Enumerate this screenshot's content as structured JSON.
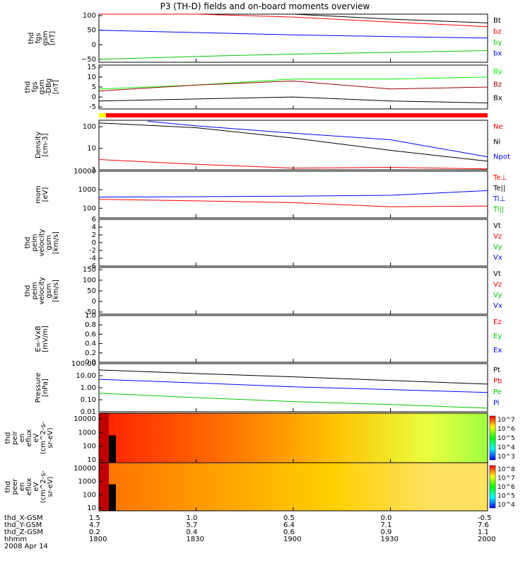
{
  "title": "P3 (TH-D) fields and on-board moments overview",
  "colors": {
    "black": "#000000",
    "red": "#ff0000",
    "darkred": "#a00000",
    "green": "#00c800",
    "lightgreen": "#00ff00",
    "blue": "#0000ff",
    "yellow": "#ffff00"
  },
  "chart_data": [
    {
      "type": "line",
      "panel": "fgs",
      "ylabel": "thd\nfgs\ngsm\n[nT]",
      "yticks": [
        "100",
        "50",
        "0",
        "−50"
      ],
      "ylim": [
        -60,
        105
      ],
      "legend": [
        {
          "name": "Bt",
          "color": "#000000"
        },
        {
          "name": "bz",
          "color": "#ff0000"
        },
        {
          "name": "by",
          "color": "#00c800"
        },
        {
          "name": "bx",
          "color": "#0000ff"
        }
      ],
      "series": [
        {
          "name": "Bt",
          "x": [
            1800,
            1830,
            1900,
            1930,
            2000
          ],
          "values": [
            170,
            130,
            105,
            88,
            75
          ]
        },
        {
          "name": "bz",
          "x": [
            1800,
            1830,
            1900,
            1930,
            2000
          ],
          "values": [
            160,
            125,
            95,
            78,
            62
          ]
        },
        {
          "name": "bx",
          "x": [
            1800,
            1830,
            1900,
            1930,
            2000
          ],
          "values": [
            50,
            42,
            34,
            28,
            23
          ]
        },
        {
          "name": "by",
          "x": [
            1800,
            1830,
            1900,
            1930,
            2000
          ],
          "values": [
            -50,
            -40,
            -32,
            -26,
            -20
          ]
        }
      ]
    },
    {
      "type": "line",
      "panel": "fgs-dBg",
      "ylabel": "thd\nfgs\ngsm\n-DBg\n[nT]",
      "yticks": [
        "15",
        "10",
        "5",
        "0",
        "-5"
      ],
      "ylim": [
        -6,
        16
      ],
      "legend": [
        {
          "name": "By",
          "color": "#00ff00"
        },
        {
          "name": "Bz",
          "color": "#a00000"
        },
        {
          "name": "Bx",
          "color": "#000000"
        }
      ],
      "series": [
        {
          "name": "By",
          "x": [
            1800,
            1830,
            1900,
            1930,
            2000
          ],
          "values": [
            4,
            6,
            9,
            9,
            10
          ]
        },
        {
          "name": "Bz",
          "x": [
            1800,
            1830,
            1900,
            1930,
            2000
          ],
          "values": [
            3,
            6,
            8,
            4,
            5
          ]
        },
        {
          "name": "Bx",
          "x": [
            1800,
            1830,
            1900,
            1930,
            2000
          ],
          "values": [
            -2,
            -1,
            0,
            -2,
            -3
          ]
        }
      ]
    },
    {
      "type": "line",
      "panel": "density",
      "ylabel": "Density\n[cm-3]",
      "yticks": [
        "100",
        "10",
        "1"
      ],
      "yscale": "log",
      "ylim": [
        1,
        200
      ],
      "legend": [
        {
          "name": "Ne",
          "color": "#ff0000"
        },
        {
          "name": "Ni",
          "color": "#000000"
        },
        {
          "name": "Npot",
          "color": "#0000ff"
        }
      ],
      "series": [
        {
          "name": "Ni",
          "x": [
            1800,
            1830,
            1900,
            1930,
            2000
          ],
          "values": [
            150,
            90,
            30,
            8,
            2.5
          ]
        },
        {
          "name": "Npot",
          "x": [
            1815,
            1830,
            1900,
            1930,
            2000
          ],
          "values": [
            180,
            110,
            50,
            25,
            4
          ]
        },
        {
          "name": "Ne",
          "x": [
            1800,
            1830,
            1900,
            1930,
            2000
          ],
          "values": [
            3,
            1.8,
            1.2,
            1.3,
            1.1
          ]
        }
      ]
    },
    {
      "type": "line",
      "panel": "temperature",
      "ylabel": "mom\n[eV]",
      "yticks": [
        "10000",
        "1000",
        "100"
      ],
      "yscale": "log",
      "ylim": [
        30,
        10000
      ],
      "legend": [
        {
          "name": "Te⊥",
          "color": "#ff0000"
        },
        {
          "name": "Te||",
          "color": "#000000"
        },
        {
          "name": "Ti⊥",
          "color": "#0000ff"
        },
        {
          "name": "Ti||",
          "color": "#00c800"
        }
      ],
      "series": [
        {
          "name": "Te⊥",
          "x": [
            1800,
            1830,
            1900,
            1930,
            2000
          ],
          "values": [
            300,
            250,
            200,
            120,
            130
          ]
        },
        {
          "name": "Ti⊥",
          "x": [
            1800,
            1830,
            1900,
            1930,
            2000
          ],
          "values": [
            400,
            420,
            450,
            500,
            900
          ]
        }
      ]
    },
    {
      "type": "line",
      "panel": "peim-velocity-1",
      "ylabel": "thd\npeim\nvelocity\ngsm\n[km/s]",
      "yticks": [
        "6",
        "4",
        "2",
        "0",
        "-2",
        "-4",
        "-6"
      ],
      "ylim": [
        -6,
        6
      ],
      "legend": [
        {
          "name": "Vt",
          "color": "#000000"
        },
        {
          "name": "Vz",
          "color": "#ff0000"
        },
        {
          "name": "Vy",
          "color": "#00c800"
        },
        {
          "name": "Vx",
          "color": "#0000ff"
        }
      ]
    },
    {
      "type": "line",
      "panel": "peim-velocity-2",
      "ylabel": "thd\npeim\nvelocity\ngsm\n[km/s]",
      "yticks": [
        "150",
        "100",
        "50",
        "0",
        "-50"
      ],
      "ylim": [
        -60,
        160
      ],
      "legend": [
        {
          "name": "Vt",
          "color": "#000000"
        },
        {
          "name": "Vz",
          "color": "#ff0000"
        },
        {
          "name": "Vy",
          "color": "#00c800"
        },
        {
          "name": "Vx",
          "color": "#0000ff"
        }
      ]
    },
    {
      "type": "line",
      "panel": "E-VxB",
      "ylabel": "E=-VxB\n[mV/m]",
      "yticks": [
        "1.0",
        "0.8",
        "0.6",
        "0.4",
        "0.2",
        "0.0"
      ],
      "ylim": [
        0,
        1
      ],
      "legend": [
        {
          "name": "Ez",
          "color": "#ff0000"
        },
        {
          "name": "Ey",
          "color": "#00c800"
        },
        {
          "name": "Ex",
          "color": "#0000ff"
        }
      ],
      "series": []
    },
    {
      "type": "line",
      "panel": "pressure",
      "ylabel": "Pressure\n[nPa]",
      "yticks": [
        "100.00",
        "10.00",
        "1.00",
        "0.10",
        "0.01"
      ],
      "yscale": "log",
      "ylim": [
        0.01,
        100
      ],
      "legend": [
        {
          "name": "Pt",
          "color": "#000000"
        },
        {
          "name": "Pb",
          "color": "#ff0000"
        },
        {
          "name": "Pe",
          "color": "#00c800"
        },
        {
          "name": "Pi",
          "color": "#0000ff"
        }
      ],
      "series": [
        {
          "name": "Pt",
          "x": [
            1800,
            1830,
            1900,
            1930,
            2000
          ],
          "values": [
            30,
            15,
            8,
            4,
            2
          ]
        },
        {
          "name": "Pi",
          "x": [
            1800,
            1830,
            1900,
            1930,
            2000
          ],
          "values": [
            5,
            2.5,
            1.2,
            0.7,
            0.4
          ]
        },
        {
          "name": "Pe",
          "x": [
            1800,
            1830,
            1900,
            1930,
            2000
          ],
          "values": [
            0.35,
            0.15,
            0.07,
            0.04,
            0.02
          ]
        }
      ]
    },
    {
      "type": "heatmap",
      "panel": "peir",
      "ylabel": "thd\npeir\nen\neflux\neV\n(cm^2-s-\nsr-eV)",
      "yticks": [
        "10000",
        "1000",
        "100",
        "10"
      ],
      "colorbar_ticks": [
        "10^7",
        "10^6",
        "10^5",
        "10^4",
        "10^3"
      ]
    },
    {
      "type": "heatmap",
      "panel": "peer",
      "ylabel": "thd\npeer\nen\neflux\neV\n(cm^2-s-\nsr-eV)",
      "yticks": [
        "10000",
        "1000",
        "100",
        "10"
      ],
      "colorbar_ticks": [
        "10^8",
        "10^7",
        "10^6",
        "10^5",
        "10^4"
      ]
    }
  ],
  "footer": {
    "row_labels": [
      "thd_X-GSM",
      "thd_Y-GSM",
      "thd_Z-GSM",
      "hhmm",
      "2008 Apr 14"
    ],
    "columns": [
      {
        "x": "1.5",
        "y": "4.7",
        "z": "0.2",
        "t": "1800"
      },
      {
        "x": "1.0",
        "y": "5.7",
        "z": "0.4",
        "t": "1830"
      },
      {
        "x": "0.5",
        "y": "6.4",
        "z": "0.6",
        "t": "1900"
      },
      {
        "x": "0.0",
        "y": "7.1",
        "z": "0.9",
        "t": "1930"
      },
      {
        "x": "-0.5",
        "y": "7.6",
        "z": "1.1",
        "t": "2000"
      }
    ]
  }
}
